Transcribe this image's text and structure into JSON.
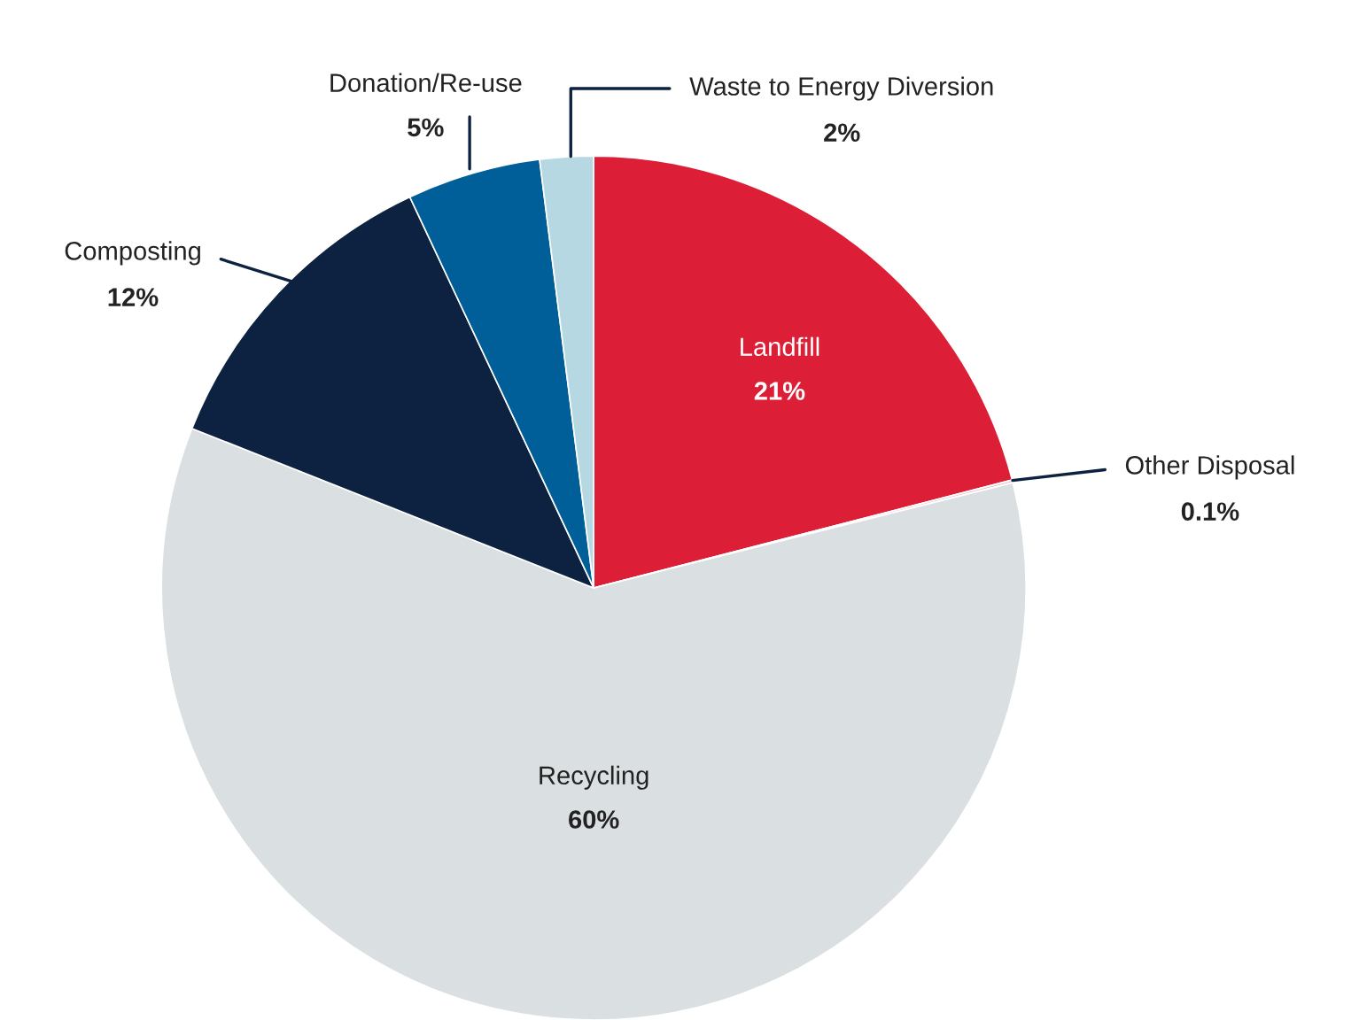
{
  "chart_data": {
    "type": "pie",
    "categories": [
      "Landfill",
      "Other Disposal",
      "Recycling",
      "Composting",
      "Donation/Re-use",
      "Waste to Energy Diversion"
    ],
    "values": [
      21,
      0.1,
      60,
      12,
      5,
      2
    ],
    "value_labels": [
      "21%",
      "0.1%",
      "60%",
      "12%",
      "5%",
      "2%"
    ],
    "colors": [
      "#dc1f37",
      "#f0c0c8",
      "#dadfe1",
      "#0d2240",
      "#005f99",
      "#b5d8e3"
    ],
    "legend": false
  }
}
